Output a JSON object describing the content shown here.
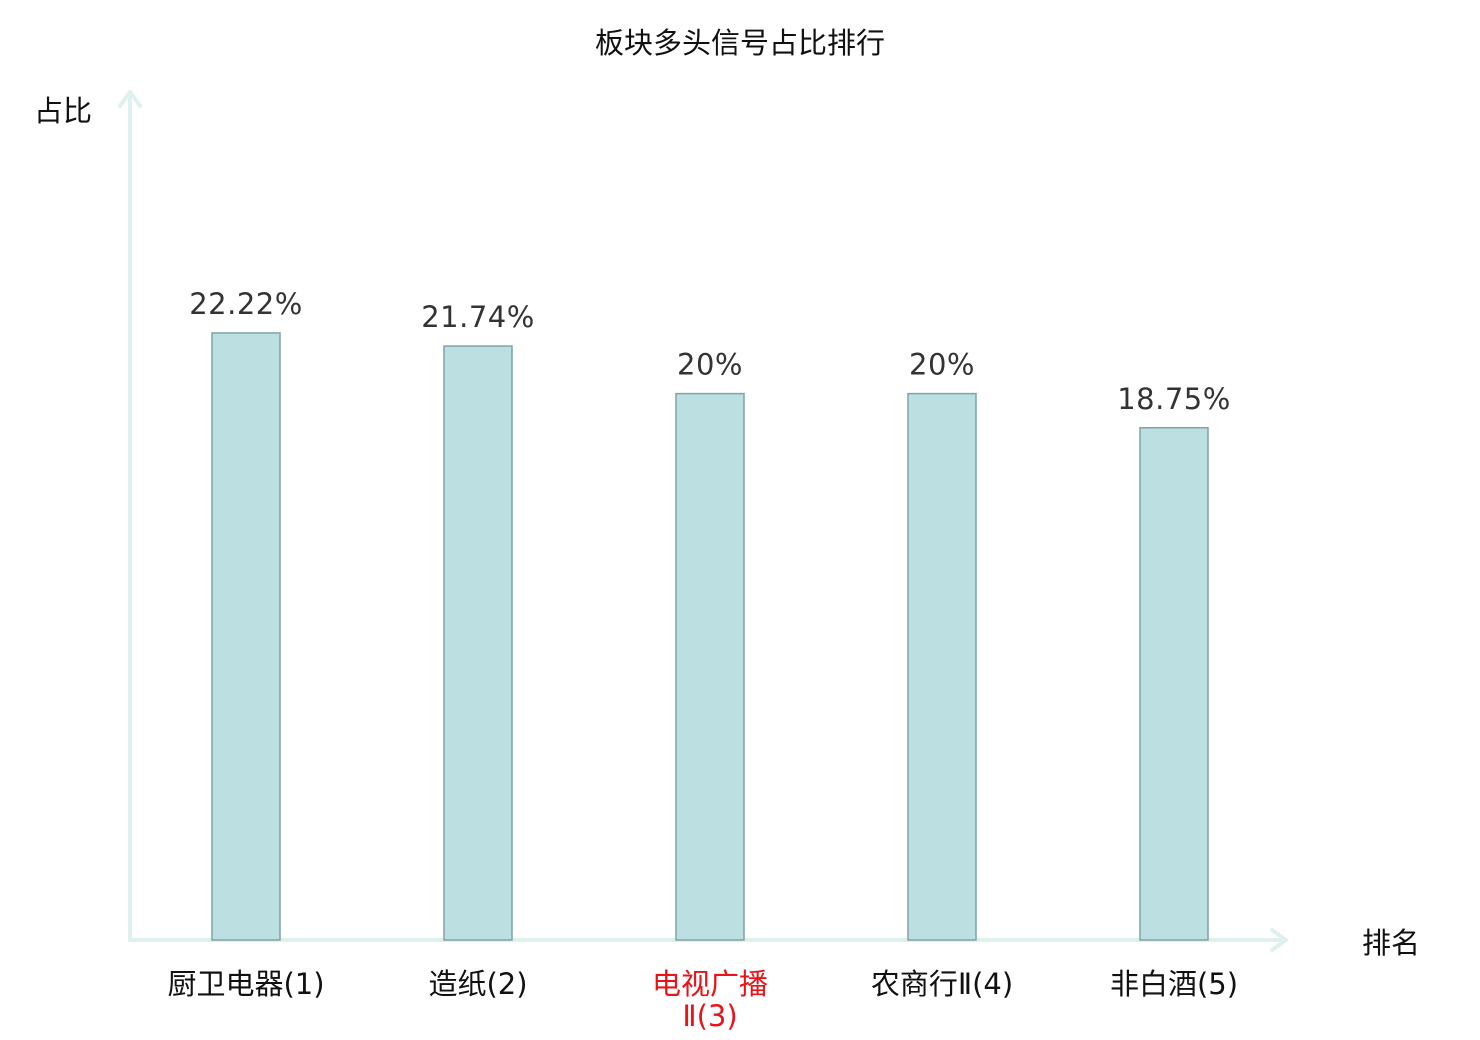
{
  "chart_data": {
    "type": "bar",
    "title": "板块多头信号占比排行",
    "ylabel": "占比",
    "xlabel": "排名",
    "categories": [
      {
        "lines": [
          "厨卫电器(1)"
        ],
        "highlight": false
      },
      {
        "lines": [
          "造纸(2)"
        ],
        "highlight": false
      },
      {
        "lines": [
          "电视广播",
          "Ⅱ(3)"
        ],
        "highlight": true
      },
      {
        "lines": [
          "农商行Ⅱ(4)"
        ],
        "highlight": false
      },
      {
        "lines": [
          "非白酒(5)"
        ],
        "highlight": false
      }
    ],
    "values": [
      22.22,
      21.74,
      20,
      20,
      18.75
    ],
    "value_labels": [
      "22.22%",
      "21.74%",
      "20%",
      "20%",
      "18.75%"
    ],
    "ylim": [
      0,
      25
    ],
    "grid": false,
    "legend": "none"
  },
  "colors": {
    "bar_fill": "#bce0e2",
    "bar_stroke": "#7fa3a6",
    "axis": "#dff1ee",
    "label_text": "#111111",
    "value_text": "#333333",
    "highlight_text": "#e8141a"
  }
}
